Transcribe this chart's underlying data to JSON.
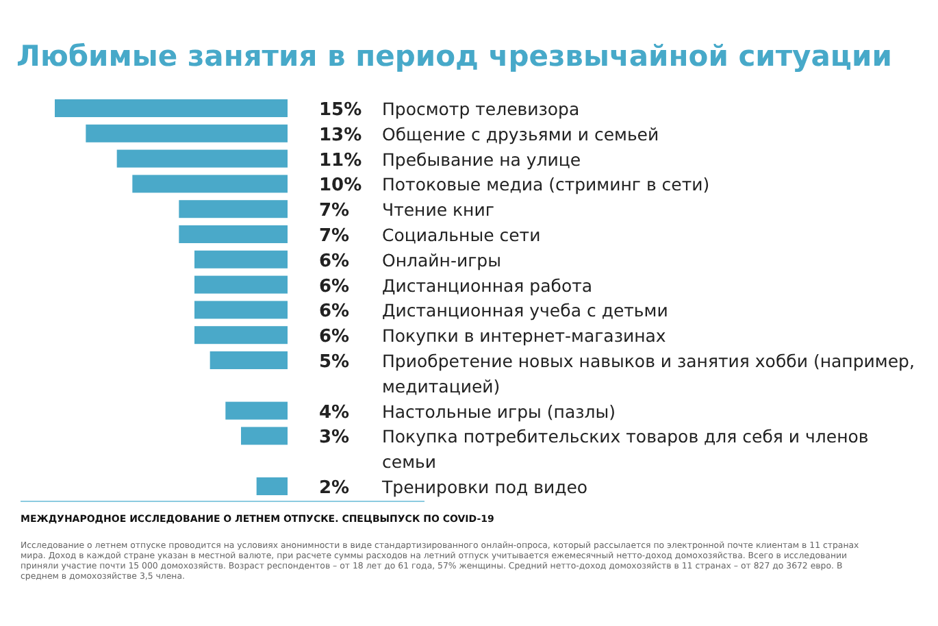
{
  "chart_data": {
    "type": "bar",
    "orientation": "horizontal",
    "title": "Любимые занятия в период чрезвычайной ситуации",
    "categories": [
      "Просмотр телевизора",
      "Общение с друзьями и семьей",
      "Пребывание на улице",
      "Потоковые медиа (стриминг в сети)",
      "Чтение книг",
      "Социальные сети",
      "Онлайн-игры",
      "Дистанционная работа",
      "Дистанционная учеба с детьми",
      "Покупки в интернет-магазинах",
      "Приобретение новых навыков и занятия хобби (например, медитацией)",
      "Настольные игры (пазлы)",
      "Покупка потребительских товаров для себя и членов семьи",
      "Тренировки под видео"
    ],
    "values": [
      15,
      13,
      11,
      10,
      7,
      7,
      6,
      6,
      6,
      6,
      5,
      4,
      3,
      2
    ],
    "value_labels": [
      "15%",
      "13%",
      "11%",
      "10%",
      "7%",
      "7%",
      "6%",
      "6%",
      "6%",
      "6%",
      "5%",
      "4%",
      "3%",
      "2%"
    ],
    "color": "#4aa9c9",
    "annotations": [
      "МЕЖДУНАРОДНОЕ ИССЛЕДОВАНИЕ О ЛЕТНЕМ ОТПУСКЕ. СПЕЦВЫПУСК ПО COVID-19",
      "Исследование о летнем отпуске проводится на условиях анонимности в виде стандартизированного онлайн-опроса, который рассылается по электронной почте клиентам в 11 странах мира. Доход в каждой стране указан в местной валюте, при расчете суммы расходов на летний отпуск учитывается ежемесячный нетто-доход домохозяйства. Всего в исследовании приняли участие почти 15 000 домохозяйств. Возраст респондентов – от 18 лет до 61 года, 57% женщины. Средний нетто-доход домохозяйств в 11 странах – от 827 до 3672 евро. В среднем в домохозяйстве 3,5 члена."
    ]
  }
}
